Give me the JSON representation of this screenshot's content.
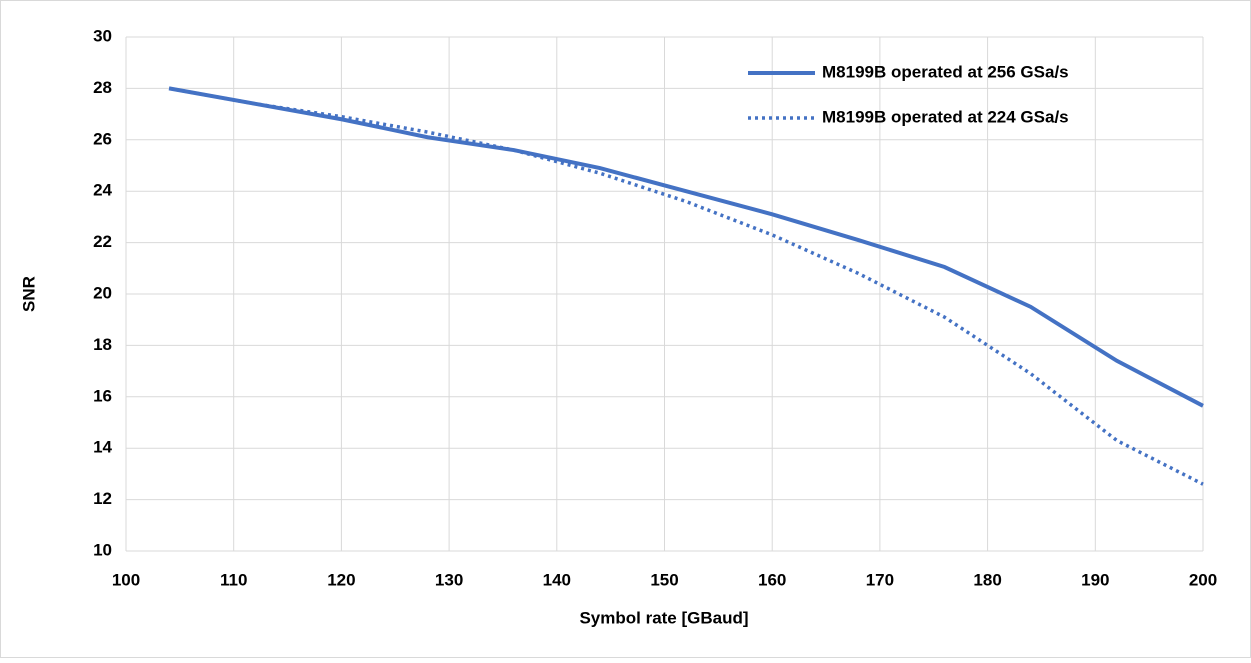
{
  "chart_data": {
    "type": "line",
    "x_label": "Symbol rate [GBaud]",
    "y_label": "SNR",
    "x": [
      104,
      112,
      120,
      128,
      136,
      144,
      152,
      160,
      168,
      176,
      184,
      192,
      200
    ],
    "series": [
      {
        "name": "M8199B operated at 256 GSa/s",
        "color": "#4472c4",
        "style": "solid",
        "values": [
          28.0,
          27.4,
          26.8,
          26.1,
          25.6,
          24.9,
          24.0,
          23.1,
          22.1,
          21.05,
          19.5,
          17.4,
          15.65
        ]
      },
      {
        "name": "M8199B operated at 224 GSa/s",
        "color": "#4472c4",
        "style": "dotted",
        "values": [
          28.0,
          27.4,
          26.9,
          26.3,
          25.6,
          24.7,
          23.6,
          22.3,
          20.8,
          19.1,
          16.9,
          14.3,
          12.6
        ]
      }
    ],
    "xlim": [
      100,
      200
    ],
    "xticks": [
      100,
      110,
      120,
      130,
      140,
      150,
      160,
      170,
      180,
      190,
      200
    ],
    "ylim": [
      10,
      30
    ],
    "yticks": [
      10,
      12,
      14,
      16,
      18,
      20,
      22,
      24,
      26,
      28,
      30
    ],
    "grid": true,
    "legend": "upper right"
  }
}
